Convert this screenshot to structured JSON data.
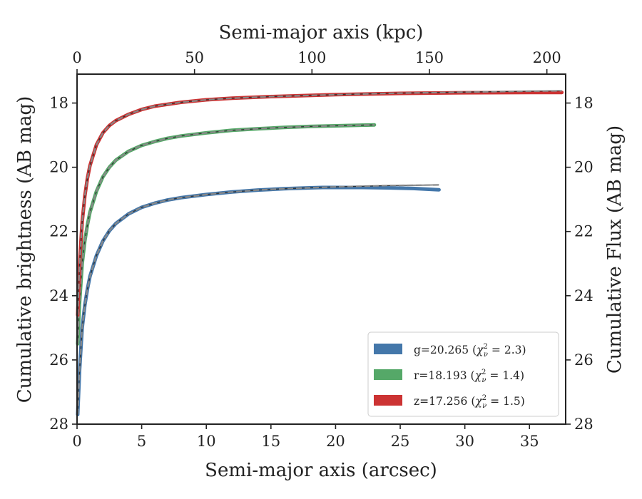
{
  "chart_data": {
    "type": "line",
    "xlabel": "Semi-major axis (arcsec)",
    "xlabel_top": "Semi-major axis (kpc)",
    "ylabel": "Cumulative brightness (AB mag)",
    "ylabel_right": "Cumulative Flux (AB mag)",
    "xlim": [
      0,
      37.8
    ],
    "xlim_top": [
      0,
      208
    ],
    "ylim": [
      28,
      17.1
    ],
    "y_inverted": true,
    "grid": false,
    "legend_position": "lower-right",
    "x_ticks": [
      0,
      5,
      10,
      15,
      20,
      25,
      30,
      35
    ],
    "x_ticks_top": [
      0,
      50,
      100,
      150,
      200
    ],
    "y_ticks": [
      18,
      20,
      22,
      24,
      26,
      28
    ],
    "model_line_style": "dashed gray",
    "series": [
      {
        "name": "g=20.265",
        "chi2": "2.3",
        "color": "#4477aa",
        "x": [
          0.05,
          0.2,
          0.4,
          0.6,
          0.8,
          1.0,
          1.5,
          2.0,
          2.5,
          3.0,
          4.0,
          5.0,
          6.0,
          7.0,
          8.0,
          10.0,
          12.0,
          14.0,
          16.0,
          18.0,
          19.0,
          20.0,
          22.0,
          24.0,
          26.0,
          28.0
        ],
        "values": [
          27.7,
          26.3,
          25.0,
          24.3,
          23.8,
          23.4,
          22.75,
          22.3,
          21.98,
          21.75,
          21.45,
          21.25,
          21.12,
          21.02,
          20.95,
          20.85,
          20.77,
          20.71,
          20.67,
          20.64,
          20.63,
          20.63,
          20.63,
          20.64,
          20.66,
          20.7
        ],
        "model_x": [
          0.05,
          0.2,
          0.4,
          0.6,
          0.8,
          1.0,
          1.5,
          2.0,
          2.5,
          3.0,
          4.0,
          5.0,
          6.0,
          7.0,
          8.0,
          10.0,
          12.0,
          14.0,
          16.0,
          18.0,
          20.0,
          22.0,
          24.0,
          26.0,
          28.0
        ],
        "model_values": [
          27.7,
          26.3,
          25.0,
          24.3,
          23.8,
          23.4,
          22.75,
          22.3,
          21.98,
          21.75,
          21.45,
          21.25,
          21.12,
          21.02,
          20.95,
          20.85,
          20.77,
          20.71,
          20.67,
          20.64,
          20.61,
          20.59,
          20.57,
          20.56,
          20.55
        ]
      },
      {
        "name": "r=18.193",
        "chi2": "1.4",
        "color": "#55a868",
        "x": [
          0.05,
          0.2,
          0.4,
          0.6,
          0.8,
          1.0,
          1.5,
          2.0,
          2.5,
          3.0,
          4.0,
          5.0,
          6.0,
          7.0,
          8.0,
          10.0,
          12.0,
          14.0,
          16.0,
          18.0,
          20.0,
          22.0,
          23.0
        ],
        "values": [
          25.5,
          24.2,
          23.0,
          22.3,
          21.8,
          21.4,
          20.75,
          20.3,
          20.0,
          19.78,
          19.5,
          19.32,
          19.2,
          19.1,
          19.03,
          18.93,
          18.85,
          18.8,
          18.76,
          18.73,
          18.71,
          18.69,
          18.68
        ],
        "model_x": [
          0.05,
          0.2,
          0.4,
          0.6,
          0.8,
          1.0,
          1.5,
          2.0,
          2.5,
          3.0,
          4.0,
          5.0,
          6.0,
          7.0,
          8.0,
          10.0,
          12.0,
          14.0,
          16.0,
          18.0,
          20.0,
          22.0,
          23.0
        ],
        "model_values": [
          25.5,
          24.2,
          23.0,
          22.3,
          21.8,
          21.4,
          20.75,
          20.3,
          20.0,
          19.78,
          19.5,
          19.32,
          19.2,
          19.1,
          19.03,
          18.93,
          18.85,
          18.8,
          18.76,
          18.73,
          18.71,
          18.69,
          18.68
        ]
      },
      {
        "name": "z=17.256",
        "chi2": "1.5",
        "color": "#cc3333",
        "x": [
          0.05,
          0.2,
          0.4,
          0.6,
          0.8,
          1.0,
          1.5,
          2.0,
          2.5,
          3.0,
          4.0,
          5.0,
          6.0,
          8.0,
          10.0,
          12.0,
          15.0,
          20.0,
          25.0,
          30.0,
          35.0,
          37.5
        ],
        "values": [
          24.6,
          23.0,
          21.7,
          20.9,
          20.35,
          19.95,
          19.3,
          18.93,
          18.7,
          18.55,
          18.35,
          18.2,
          18.1,
          17.98,
          17.9,
          17.85,
          17.8,
          17.74,
          17.7,
          17.68,
          17.67,
          17.67
        ],
        "model_x": [
          0.05,
          0.2,
          0.4,
          0.6,
          0.8,
          1.0,
          1.5,
          2.0,
          2.5,
          3.0,
          4.0,
          5.0,
          6.0,
          8.0,
          10.0,
          12.0,
          15.0,
          20.0,
          25.0,
          30.0,
          35.0,
          37.5
        ],
        "model_values": [
          24.6,
          23.0,
          21.7,
          20.9,
          20.35,
          19.95,
          19.3,
          18.93,
          18.7,
          18.55,
          18.35,
          18.2,
          18.1,
          17.98,
          17.9,
          17.85,
          17.8,
          17.74,
          17.69,
          17.66,
          17.63,
          17.62
        ]
      }
    ]
  }
}
